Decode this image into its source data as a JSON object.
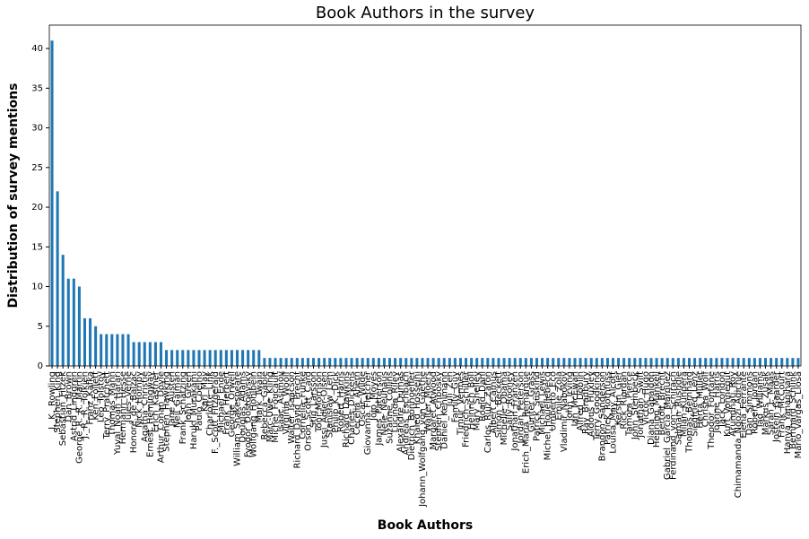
{
  "chart_data": {
    "type": "bar",
    "title": "Book Authors in the survey",
    "x_label": "Book Authors",
    "y_label": "Distribution of survey mentions",
    "color": "#1f77b4",
    "categories": [
      "J._K._Rowling",
      "Stephen_King",
      "Sebastian_Fitzek",
      "Dan_Brown",
      "Astrid_Lindgren",
      "George_R._R._Martin",
      "J._R._R._Tolkien",
      "Franz_Kafka",
      "Ken_Follett",
      "Leo_Tolstoy",
      "Terry_Pratchett",
      "Thomas_Mann",
      "Yuval_Noah_Harari",
      "Hermann_Hesse",
      "Jules_Verne",
      "Honoré_de_Balzac",
      "Nick_Hornby",
      "Agatha_Christie",
      "Ernest_Hemingway",
      "Erich_Kästner",
      "Arthur_Conan_Doyle",
      "Stephen_Hawking",
      "Jane_Austen",
      "Neil_Gaiman",
      "Frank_Schätzing",
      "John_Green",
      "Haruki_Murakami",
      "Paulo_Coelho",
      "Karl_May",
      "Charlotte_Link",
      "F._Scott_Fitzgerald",
      "Michael_Ende",
      "Frank_Herbert",
      "George_Orwell",
      "William_Shakespeare",
      "Douglas_Adams",
      "Fyodor_Dostoevsky",
      "Wolfgang_Hohlbein",
      "Mark_Twain",
      "Rebecca_Gablé",
      "Marc-Uwe_Kling",
      "Michel_Foucault",
      "Isaac_Asimov",
      "Virginia_Woolf",
      "Walter_Isaacson",
      "Richard_David_Precht",
      "Cornelia_Funke",
      "Orson_Scott_Card",
      "Stig_Larsson",
      "Toni_Morrison",
      "Jussi_Adler-Olsen",
      "Stanisław_Lem",
      "Philip_K._Dick",
      "Robert_Harris",
      "Richard_Dawkins",
      "Charles_Dickens",
      "Cecelia_Ahern",
      "Oscar_Wilde",
      "Giovanna_Fletcher",
      "Jojo_Moyes",
      "James_Patterson",
      "Nele_Neuhaus",
      "Suzanne_Collins",
      "Lucinda_Riley",
      "Alexandre_Dumas",
      "Andreas_Eschbach",
      "Dietrich_Bonhoeffer",
      "Khaled_Hosseini",
      "Johann_Wolfgang_von_Goethe",
      "Walter_Moers",
      "Margaret_Atwood",
      "Stephen_Chbosky",
      "Daniel_Kehlmann",
      "Juli_Zeh",
      "Family_Guy",
      "Timur_Vermes",
      "Friedrich_Schiller",
      "Heinrich_Böll",
      "Mary_Shelley",
      "Roald_Dahl",
      "Carlos_Ruiz_Zafón",
      "Albert_Camus",
      "Simon_Beckett",
      "Michelle_Obama",
      "Sally_Rooney",
      "Jonathan_Franzen",
      "Jordan_Peterson",
      "Erich_Maria_Remarque",
      "Günter_Grass",
      "Patrick_Süskind",
      "Michael_Lewis",
      "Michel_Houellebecq",
      "Umberto_Eco",
      "Émile_Zola",
      "Vladimir_Nabokov",
      "John_Irving",
      "Ian_McEwan",
      "Alfred_Döblin",
      "Ray_Bradbury",
      "Aldous_Huxley",
      "Terry_Goodkind",
      "Brandon_Sanderson",
      "Patrick_Rothfuss",
      "Louisa_May_Alcott",
      "Kerstin_Gier",
      "Rick_Riordan",
      "Tamora_Pierce",
      "John_Steinbeck",
      "Jonathan_Swift",
      "Victor_Hugo",
      "Diana_Gabaldon",
      "Henning_Mankell",
      "Bertolt_Brecht",
      "Gabriel_García_Márquez",
      "Ferdinand_von_Schirach",
      "Salman_Rushdie",
      "Milan_Kundera",
      "Thomas_Bernhard",
      "Siegfried_Lenz",
      "Herta_Müller",
      "Christa_Wolf",
      "Theodor_Fontane",
      "Joanne_Harris",
      "Jack_London",
      "Kurt_Vonnegut",
      "Arundhati_Roy",
      "Chimamanda_Ngozi_Adichie",
      "Elena_Ferrante",
      "Dan_Simmons",
      "Robert_Jordan",
      "Tad_Williams",
      "Markus_Zusak",
      "Sarah_J._Maas",
      "Jostein_Gaarder",
      "Frank_McCourt",
      "Hanya_Yanagihara",
      "Bernhard_Schlink",
      "Mario_Vargas_Llosa"
    ],
    "values": [
      41,
      22,
      14,
      11,
      11,
      10,
      6,
      6,
      5,
      4,
      4,
      4,
      4,
      4,
      4,
      3,
      3,
      3,
      3,
      3,
      3,
      2,
      2,
      2,
      2,
      2,
      2,
      2,
      2,
      2,
      2,
      2,
      2,
      2,
      2,
      2,
      2,
      2,
      2,
      1,
      1,
      1,
      1,
      1,
      1,
      1,
      1,
      1,
      1,
      1,
      1,
      1,
      1,
      1,
      1,
      1,
      1,
      1,
      1,
      1,
      1,
      1,
      1,
      1,
      1,
      1,
      1,
      1,
      1,
      1,
      1,
      1,
      1,
      1,
      1,
      1,
      1,
      1,
      1,
      1,
      1,
      1,
      1,
      1,
      1,
      1,
      1,
      1,
      1,
      1,
      1,
      1,
      1,
      1,
      1,
      1,
      1,
      1,
      1,
      1,
      1,
      1,
      1,
      1,
      1,
      1,
      1,
      1,
      1,
      1,
      1,
      1,
      1,
      1,
      1,
      1,
      1,
      1,
      1,
      1,
      1,
      1,
      1,
      1,
      1,
      1,
      1,
      1,
      1,
      1,
      1,
      1,
      1,
      1,
      1,
      1,
      1,
      1
    ],
    "ylim": [
      0,
      42.95
    ],
    "yticks": [
      0,
      5,
      10,
      15,
      20,
      25,
      30,
      35,
      40
    ]
  }
}
